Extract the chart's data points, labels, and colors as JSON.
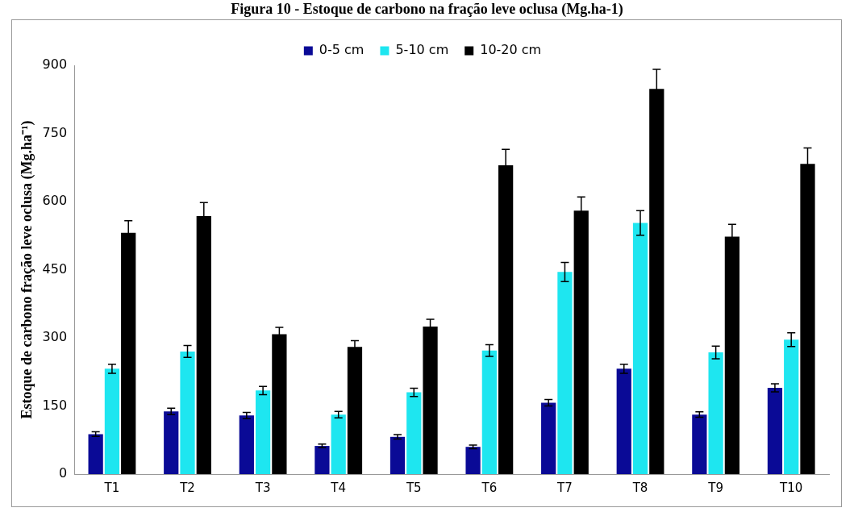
{
  "chart_data": {
    "type": "bar",
    "title": "Figura 10 - Estoque de carbono na fração leve oclusa (Mg.ha-1)",
    "ylabel": "Estoque de carbono fração leve oclusa (Mg.ha⁻¹)",
    "categories": [
      "T1",
      "T2",
      "T3",
      "T4",
      "T5",
      "T6",
      "T7",
      "T8",
      "T9",
      "T10"
    ],
    "series": [
      {
        "name": "0-5 cm",
        "color": "#0a0a96",
        "values": [
          88,
          138,
          129,
          62,
          82,
          60,
          157,
          232,
          131,
          190
        ],
        "errors": [
          5,
          7,
          7,
          4,
          5,
          4,
          7,
          10,
          6,
          9
        ]
      },
      {
        "name": "5-10 cm",
        "color": "#1ee6f0",
        "values": [
          232,
          270,
          184,
          131,
          180,
          272,
          445,
          553,
          268,
          296
        ],
        "errors": [
          10,
          13,
          9,
          7,
          9,
          13,
          21,
          27,
          14,
          15
        ]
      },
      {
        "name": "10-20 cm",
        "color": "#000000",
        "values": [
          531,
          568,
          308,
          280,
          325,
          680,
          580,
          848,
          523,
          683
        ],
        "errors": [
          27,
          30,
          15,
          14,
          16,
          35,
          30,
          43,
          27,
          35
        ]
      }
    ],
    "ylim": [
      0,
      900
    ],
    "yticks": [
      0,
      150,
      300,
      450,
      600,
      750,
      900
    ],
    "grid": false,
    "legend": "top"
  }
}
